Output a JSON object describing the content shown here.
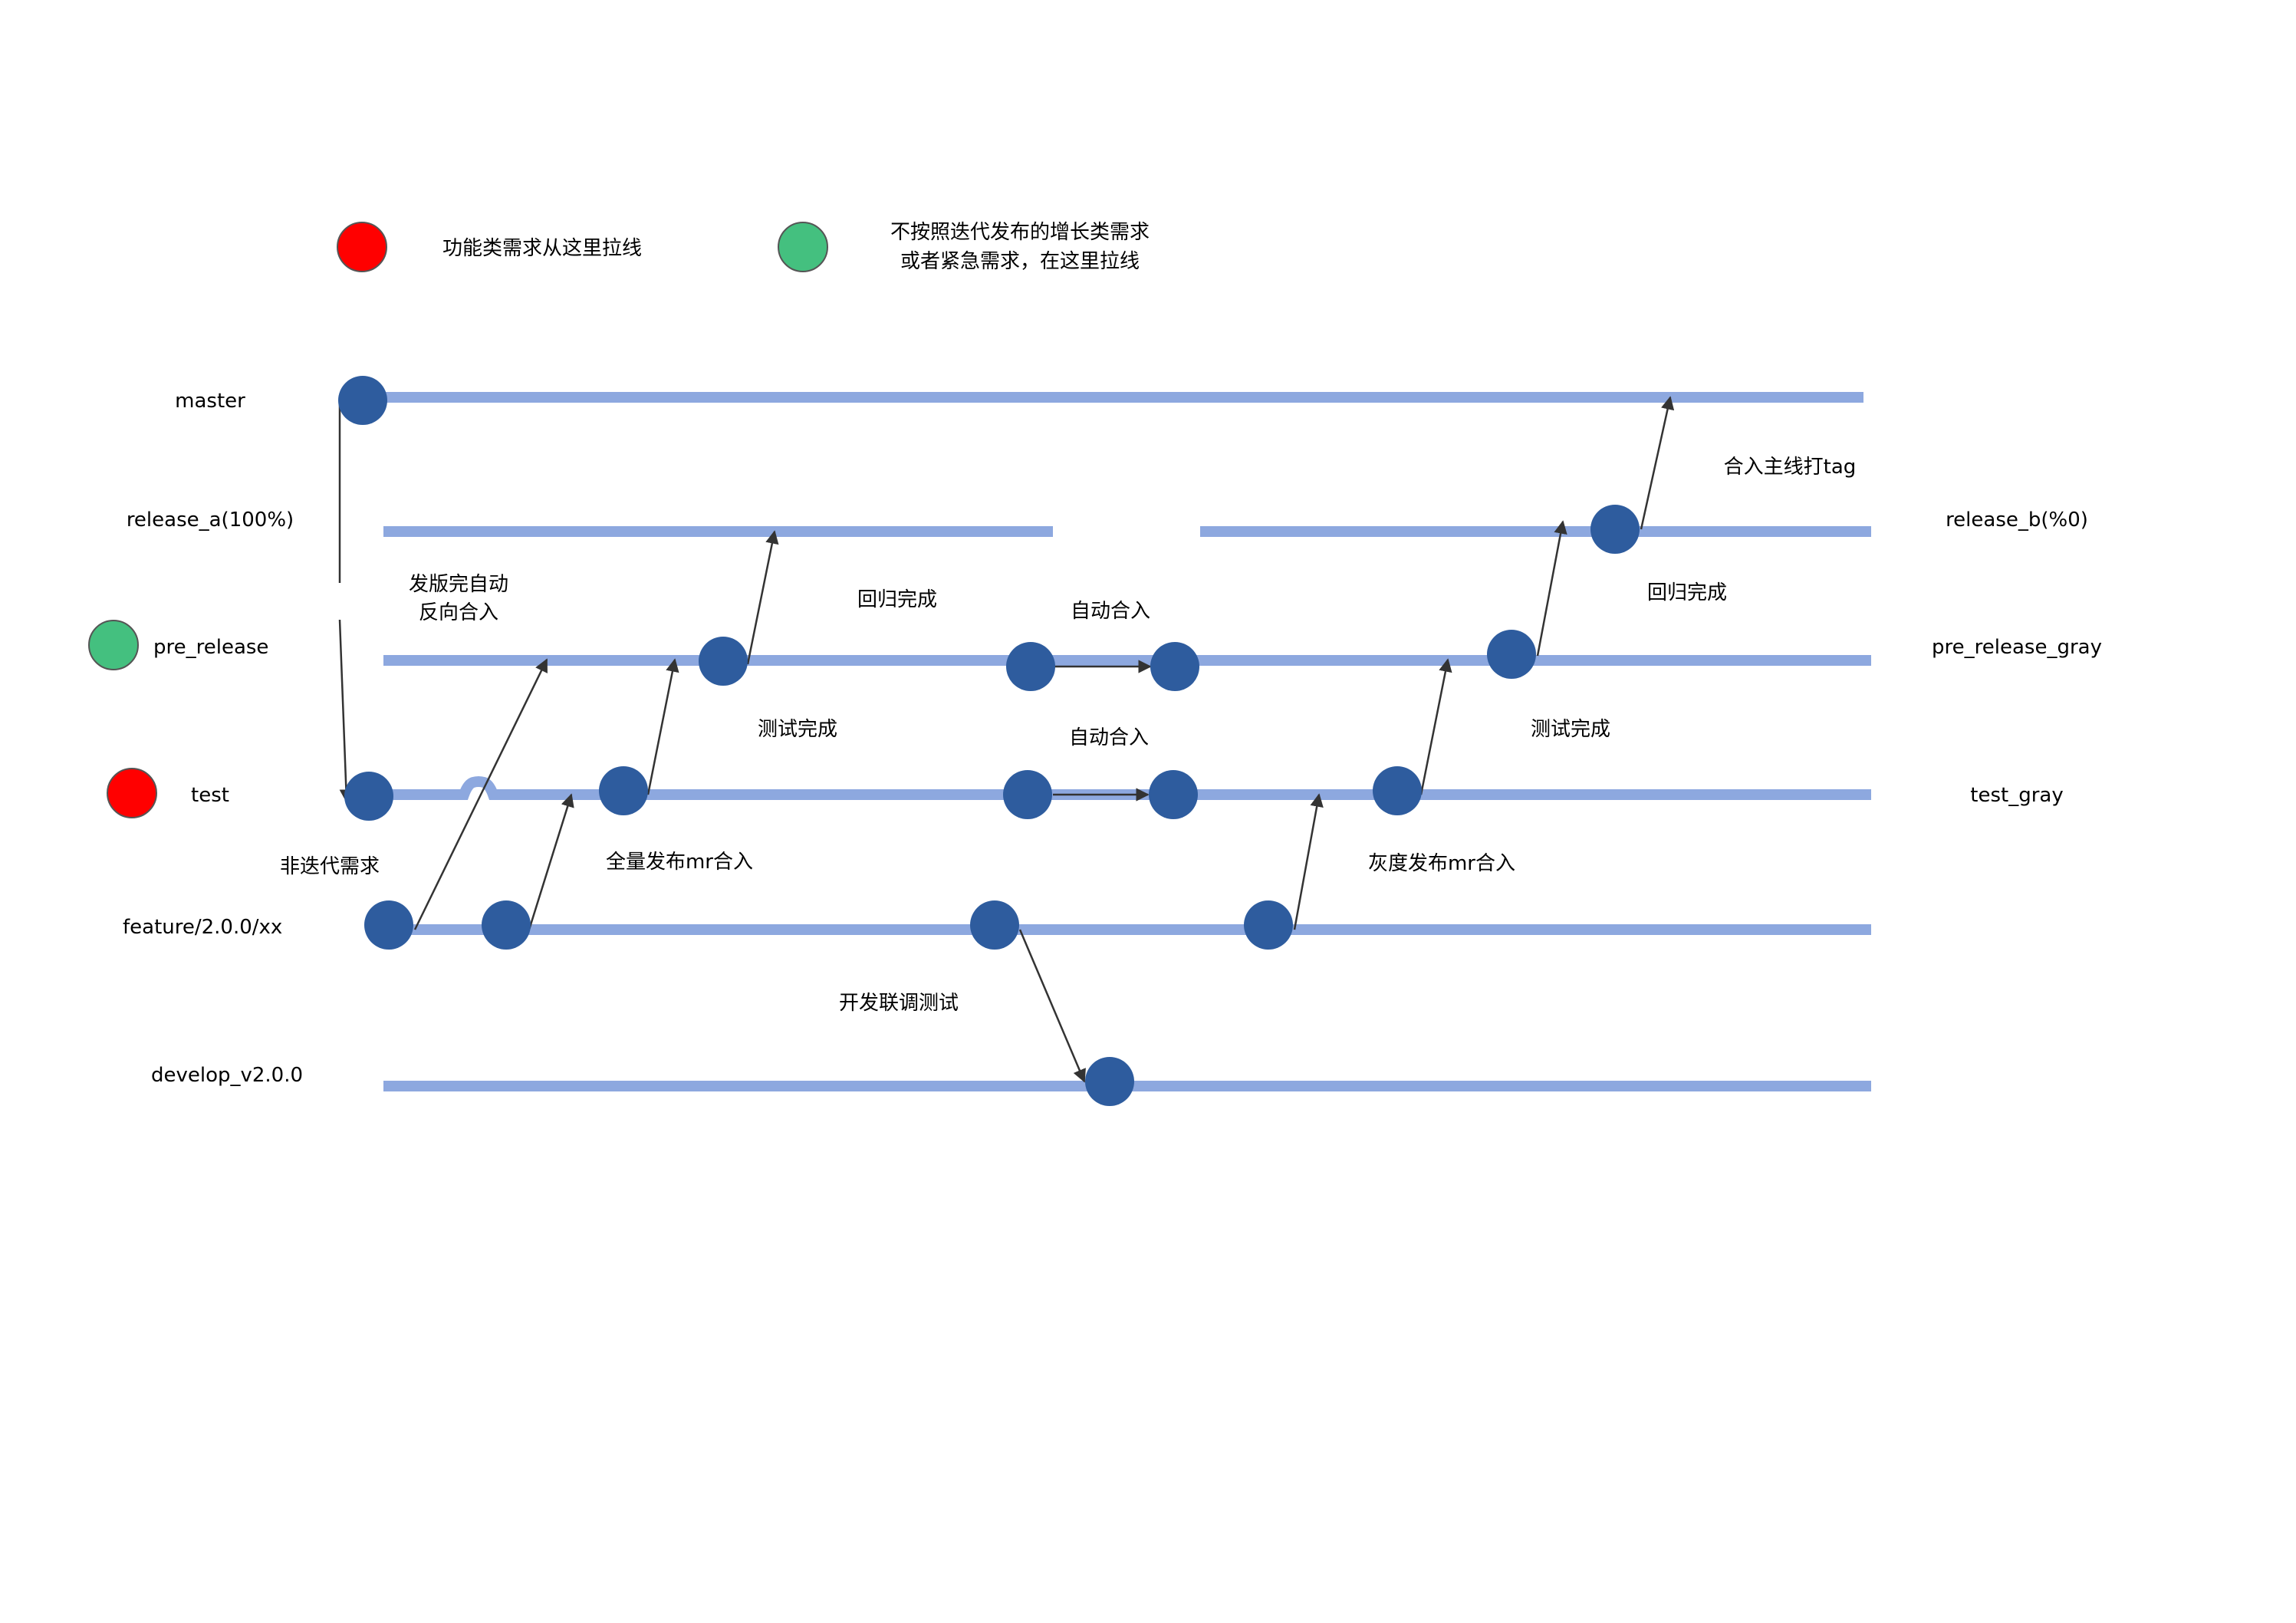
{
  "legend": [
    {
      "color": "#FF0000",
      "text_lines": [
        "功能类需求从这里拉线"
      ]
    },
    {
      "color": "#44C07F",
      "text_lines": [
        "不按照迭代发布的增长类需求",
        "或者紧急需求，在这里拉线"
      ]
    }
  ],
  "branches": {
    "master": "master",
    "release_a": "release_a(100%)",
    "release_b": "release_b(%0)",
    "pre_release": "pre_release",
    "pre_release_gray": "pre_release_gray",
    "test": "test",
    "test_gray": "test_gray",
    "feature": "feature/2.0.0/xx",
    "develop": "develop_v2.0.0"
  },
  "annotations": {
    "auto_reverse_merge": [
      "发版完自动",
      "反向合入"
    ],
    "regression_done_1": "回归完成",
    "regression_done_2": "回归完成",
    "auto_merge_1": "自动合入",
    "auto_merge_2": "自动合入",
    "test_done_1": "测试完成",
    "test_done_2": "测试完成",
    "non_iteration": "非迭代需求",
    "full_release_mr": "全量发布mr合入",
    "gray_release_mr": "灰度发布mr合入",
    "dev_joint_test": "开发联调测试",
    "merge_main_tag": "合入主线打tag"
  },
  "colors": {
    "branch_line": "#8DA8DF",
    "commit": "#2E5C9E",
    "arrow": "#333333",
    "feature_marker": "#FF0000",
    "growth_marker": "#44C07F"
  }
}
